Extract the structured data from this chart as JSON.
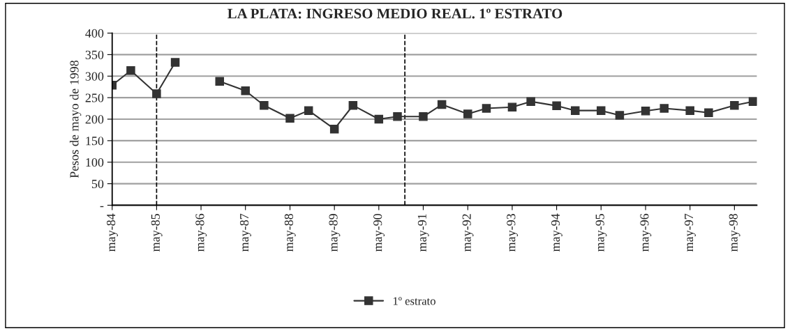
{
  "chart_data": {
    "type": "line",
    "title": "LA PLATA: INGRESO MEDIO REAL. 1º ESTRATO",
    "ylabel": "Pesos de mayo de 1998",
    "x": [
      "1984-05",
      "1984-10",
      "1985-05",
      "1985-10",
      "1986-05",
      "1986-10",
      "1987-05",
      "1987-10",
      "1988-05",
      "1988-10",
      "1989-05",
      "1989-10",
      "1990-05",
      "1990-10",
      "1991-05",
      "1991-10",
      "1992-05",
      "1992-10",
      "1993-05",
      "1993-10",
      "1994-05",
      "1994-10",
      "1995-05",
      "1995-10",
      "1996-05",
      "1996-10",
      "1997-05",
      "1997-10",
      "1998-05",
      "1998-10"
    ],
    "series": [
      {
        "name": "1º estrato",
        "color": "#333333",
        "values": [
          279,
          313,
          259,
          332,
          null,
          288,
          266,
          232,
          202,
          220,
          177,
          232,
          200,
          206,
          206,
          234,
          212,
          225,
          228,
          241,
          231,
          220,
          220,
          209,
          219,
          225,
          220,
          215,
          232,
          241
        ]
      }
    ],
    "xlim": [
      "1984-05",
      "1998-11"
    ],
    "xticks": [
      {
        "value": "1984-05",
        "label": "may-84"
      },
      {
        "value": "1985-05",
        "label": "may-85"
      },
      {
        "value": "1986-05",
        "label": "may-86"
      },
      {
        "value": "1987-05",
        "label": "may-87"
      },
      {
        "value": "1988-05",
        "label": "may-88"
      },
      {
        "value": "1989-05",
        "label": "may-89"
      },
      {
        "value": "1990-05",
        "label": "may-90"
      },
      {
        "value": "1991-05",
        "label": "may-91"
      },
      {
        "value": "1992-05",
        "label": "may-92"
      },
      {
        "value": "1993-05",
        "label": "may-93"
      },
      {
        "value": "1994-05",
        "label": "may-94"
      },
      {
        "value": "1995-05",
        "label": "may-95"
      },
      {
        "value": "1996-05",
        "label": "may-96"
      },
      {
        "value": "1997-05",
        "label": "may-97"
      },
      {
        "value": "1998-05",
        "label": "may-98"
      }
    ],
    "ylim": [
      0,
      400
    ],
    "yticks": [
      {
        "value": 0,
        "label": "-"
      },
      50,
      100,
      150,
      200,
      250,
      300,
      350,
      400
    ],
    "ref_lines": [
      {
        "axis": "x",
        "value": "1985-05",
        "color": "#000000",
        "line_style": "dashed"
      },
      {
        "axis": "x",
        "value": "1990-12",
        "color": "#000000",
        "line_style": "dashed"
      }
    ],
    "grid": "y",
    "legend": "bottom",
    "marker": "square",
    "line_style": "solid"
  }
}
